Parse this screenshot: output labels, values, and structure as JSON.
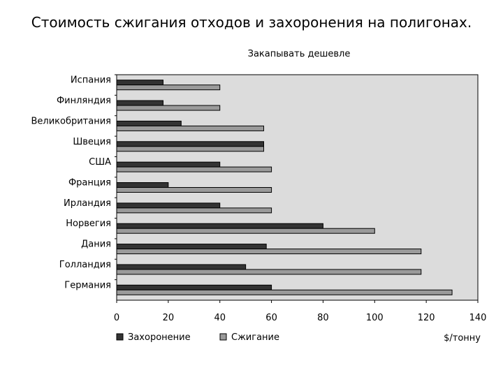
{
  "slide": {
    "title": "Стоимость сжигания отходов и захоронения на полигонах."
  },
  "chart_data": {
    "type": "bar",
    "orientation": "horizontal",
    "title": "Закапывать дешевле",
    "xlabel": "$/тонну",
    "ylabel": "",
    "xlim": [
      0,
      140
    ],
    "xticks": [
      0,
      20,
      40,
      60,
      80,
      100,
      120,
      140
    ],
    "grid": false,
    "legend_position": "bottom-left",
    "categories": [
      "Испания",
      "Финляндия",
      "Великобритания",
      "Швеция",
      "США",
      "Франция",
      "Ирландия",
      "Норвегия",
      "Дания",
      "Голландия",
      "Германия"
    ],
    "series": [
      {
        "name": "Захоронение",
        "color": "#333333",
        "values": [
          18,
          18,
          25,
          57,
          40,
          20,
          40,
          80,
          58,
          50,
          60
        ]
      },
      {
        "name": "Сжигание",
        "color": "#9a9a9a",
        "values": [
          40,
          40,
          57,
          57,
          60,
          60,
          60,
          100,
          118,
          118,
          130
        ]
      }
    ],
    "plot_background": "#dcdcdc"
  }
}
